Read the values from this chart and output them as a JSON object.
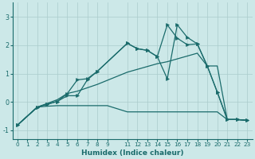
{
  "xlabel": "Humidex (Indice chaleur)",
  "bg_color": "#cce8e8",
  "grid_color": "#aacccc",
  "line_color": "#1a6b6b",
  "xlim": [
    -0.5,
    23.5
  ],
  "ylim": [
    -1.3,
    3.5
  ],
  "xticks": [
    0,
    1,
    2,
    3,
    4,
    5,
    6,
    7,
    8,
    9,
    11,
    12,
    13,
    14,
    15,
    16,
    17,
    18,
    19,
    20,
    21,
    22,
    23
  ],
  "yticks": [
    -1,
    0,
    1,
    2,
    3
  ],
  "s1_x": [
    0,
    2,
    3,
    4,
    5,
    6,
    7,
    8,
    11,
    12,
    13,
    14,
    15,
    16,
    17,
    18,
    19,
    20,
    21,
    22,
    23
  ],
  "s1_y": [
    -0.82,
    -0.18,
    -0.08,
    0.02,
    0.3,
    0.78,
    0.82,
    1.08,
    2.07,
    1.88,
    1.82,
    1.6,
    2.72,
    2.25,
    2.02,
    2.05,
    1.27,
    0.35,
    -0.62,
    -0.62,
    -0.65
  ],
  "s2_x": [
    0,
    2,
    3,
    4,
    5,
    6,
    7,
    8,
    11,
    12,
    13,
    14,
    15,
    16,
    17,
    18,
    19,
    20,
    21,
    22,
    23
  ],
  "s2_y": [
    -0.82,
    -0.18,
    -0.08,
    0.02,
    0.22,
    0.22,
    0.78,
    1.08,
    2.07,
    1.88,
    1.82,
    1.6,
    0.82,
    2.72,
    2.28,
    2.05,
    1.27,
    0.35,
    -0.62,
    -0.62,
    -0.65
  ],
  "s3_x": [
    0,
    2,
    3,
    4,
    5,
    6,
    7,
    8,
    9,
    11,
    12,
    13,
    14,
    15,
    16,
    17,
    18,
    19,
    20,
    21,
    22,
    23
  ],
  "s3_y": [
    -0.82,
    -0.18,
    -0.15,
    -0.13,
    -0.13,
    -0.13,
    -0.13,
    -0.13,
    -0.13,
    -0.35,
    -0.35,
    -0.35,
    -0.35,
    -0.35,
    -0.35,
    -0.35,
    -0.35,
    -0.35,
    -0.35,
    -0.62,
    -0.62,
    -0.65
  ],
  "s4_x": [
    0,
    2,
    3,
    4,
    5,
    6,
    7,
    8,
    11,
    12,
    13,
    14,
    15,
    16,
    17,
    18,
    19,
    20,
    21,
    22,
    23
  ],
  "s4_y": [
    -0.82,
    -0.18,
    -0.05,
    0.08,
    0.3,
    0.38,
    0.5,
    0.62,
    1.05,
    1.15,
    1.25,
    1.35,
    1.42,
    1.52,
    1.62,
    1.72,
    1.27,
    1.27,
    -0.62,
    -0.62,
    -0.65
  ]
}
